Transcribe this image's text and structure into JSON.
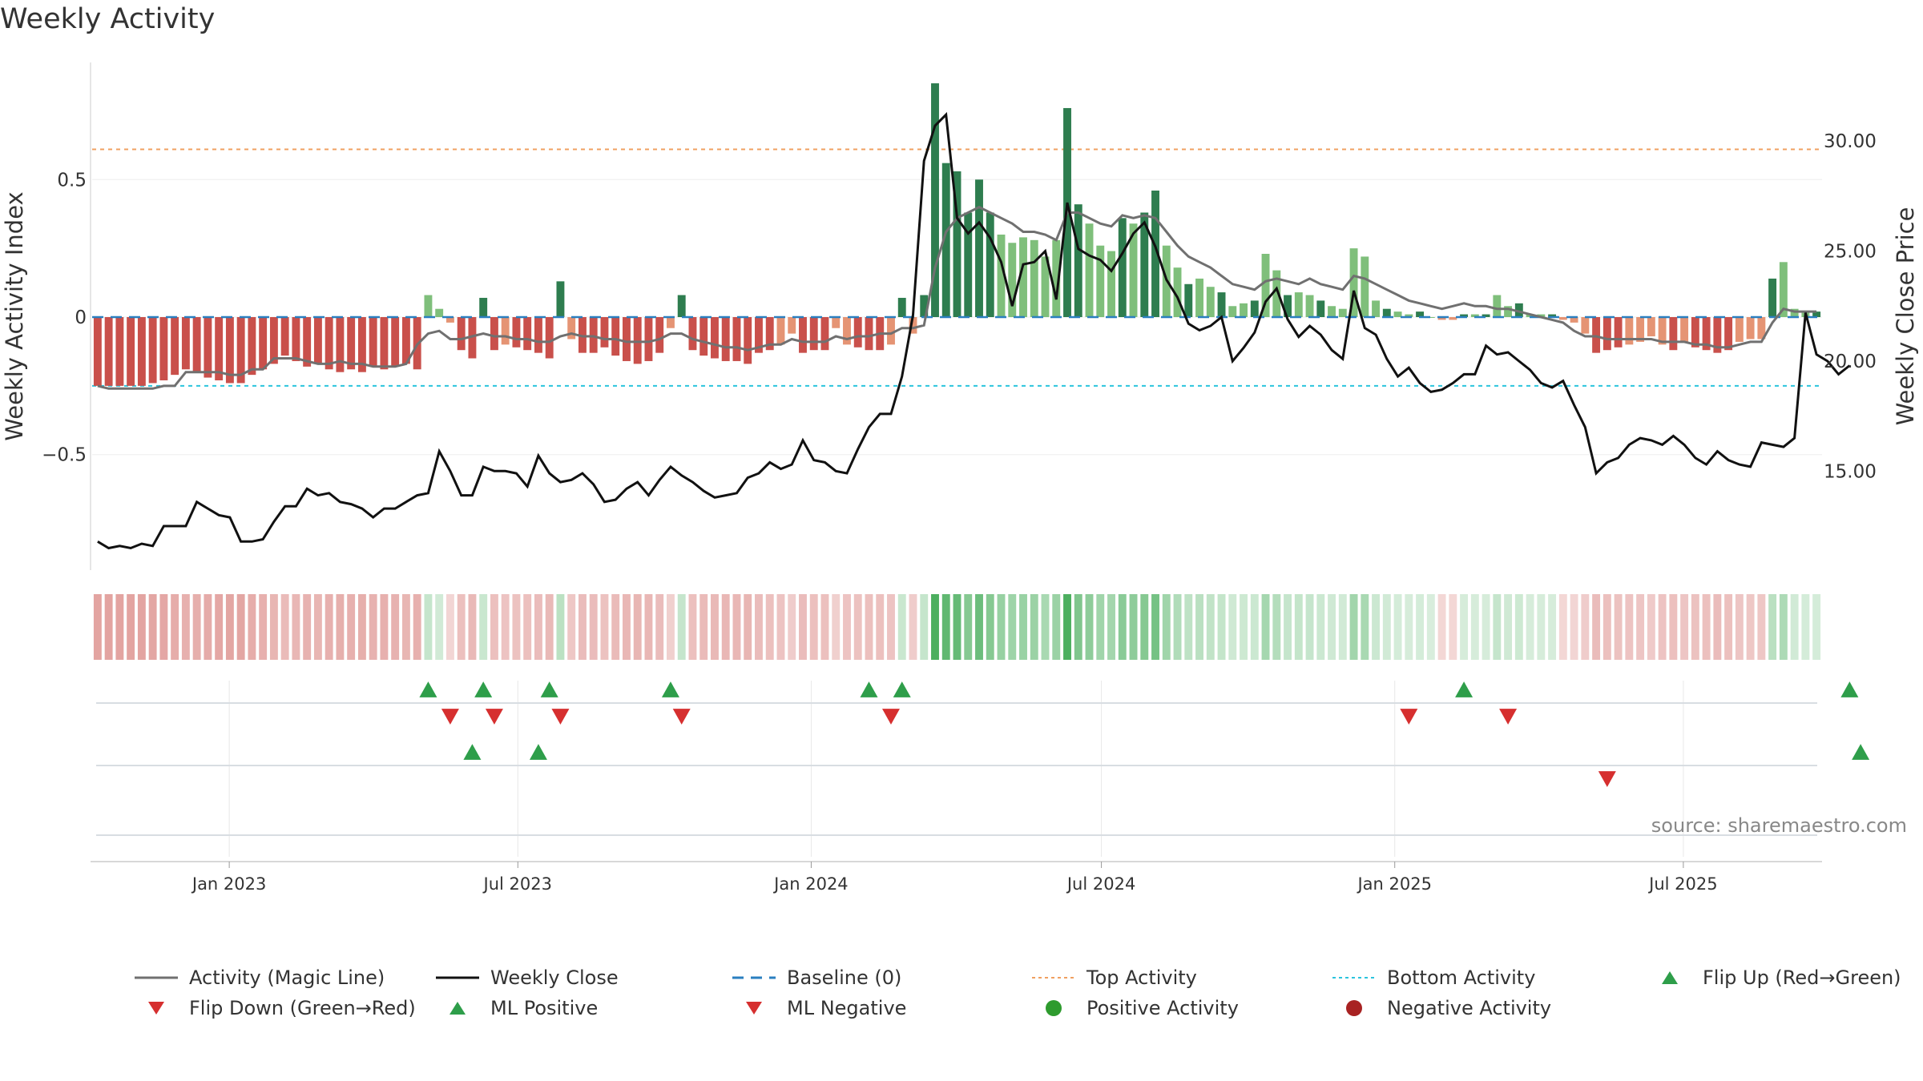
{
  "title": "Weekly Activity",
  "source": "source: sharemaestro.com",
  "colors": {
    "pos_dark": "#2e7d4f",
    "pos_mid": "#4caf5f",
    "pos_light": "#7fbf7b",
    "neg_dark": "#c9504b",
    "neg_light": "#e59474",
    "magic": "#707070",
    "close": "#111111",
    "baseline": "#2a7fc0",
    "top": "#f0a060",
    "bottom": "#2bc4dd",
    "flip_up": "#2e9e4a",
    "flip_down": "#d62f2f",
    "pos_dot": "#2e9b2e",
    "neg_dot": "#a82222"
  },
  "legend": [
    {
      "label": "Activity (Magic Line)",
      "kind": "line",
      "color": "#707070"
    },
    {
      "label": "Weekly Close",
      "kind": "line",
      "color": "#111111"
    },
    {
      "label": "Baseline (0)",
      "kind": "dash",
      "color": "#2a7fc0"
    },
    {
      "label": "Top Activity",
      "kind": "dot-line",
      "color": "#f0a060"
    },
    {
      "label": "Bottom Activity",
      "kind": "dot-line",
      "color": "#2bc4dd"
    },
    {
      "label": "Flip Up (Red→Green)",
      "kind": "tri-up",
      "color": "#2e9e4a"
    },
    {
      "label": "Flip Down (Green→Red)",
      "kind": "tri-down",
      "color": "#d62f2f"
    },
    {
      "label": "ML Positive",
      "kind": "tri-up",
      "color": "#2e9e4a"
    },
    {
      "label": "ML Negative",
      "kind": "tri-down",
      "color": "#d62f2f"
    },
    {
      "label": "Positive Activity",
      "kind": "circle",
      "color": "#2e9b2e"
    },
    {
      "label": "Negative Activity",
      "kind": "circle",
      "color": "#a82222"
    }
  ],
  "chart_data": {
    "type": "bar",
    "title": "Weekly Activity",
    "ylabel": "Weekly Activity Index",
    "y2label": "Weekly Close Price",
    "ylim": [
      -0.92,
      0.92
    ],
    "y2lim": [
      10.5,
      33.5
    ],
    "yticks": [
      0.5,
      0,
      -0.5
    ],
    "ytick_labels": [
      "0.5",
      "0",
      "−0.5"
    ],
    "y2ticks": [
      30,
      25,
      20,
      15
    ],
    "y2tick_labels": [
      "30.00",
      "25.00",
      "20.00",
      "15.00"
    ],
    "top_activity": 0.61,
    "bottom_activity": -0.25,
    "baseline": 0,
    "x_start": "2022-10-07",
    "x_end": "2025-09-26",
    "date_ticks": [
      "2023-01-01",
      "2023-07-01",
      "2024-01-01",
      "2024-07-01",
      "2025-01-01",
      "2025-07-01"
    ],
    "date_tick_labels": [
      "Jan 2023",
      "Jul 2023",
      "Jan 2024",
      "Jul 2024",
      "Jan 2025",
      "Jul 2025"
    ],
    "activity": [
      -0.25,
      -0.25,
      -0.25,
      -0.25,
      -0.25,
      -0.24,
      -0.23,
      -0.21,
      -0.19,
      -0.2,
      -0.22,
      -0.23,
      -0.24,
      -0.24,
      -0.21,
      -0.19,
      -0.17,
      -0.14,
      -0.16,
      -0.18,
      -0.17,
      -0.19,
      -0.2,
      -0.19,
      -0.2,
      -0.18,
      -0.19,
      -0.18,
      -0.17,
      -0.19,
      0.08,
      0.03,
      -0.02,
      -0.12,
      -0.15,
      0.07,
      -0.12,
      -0.1,
      -0.11,
      -0.12,
      -0.13,
      -0.15,
      0.13,
      -0.08,
      -0.13,
      -0.13,
      -0.11,
      -0.14,
      -0.16,
      -0.17,
      -0.16,
      -0.13,
      -0.04,
      0.08,
      -0.12,
      -0.14,
      -0.15,
      -0.16,
      -0.16,
      -0.17,
      -0.13,
      -0.12,
      -0.1,
      -0.06,
      -0.13,
      -0.12,
      -0.12,
      -0.04,
      -0.1,
      -0.11,
      -0.12,
      -0.12,
      -0.1,
      0.07,
      -0.06,
      0.08,
      0.85,
      0.56,
      0.53,
      0.38,
      0.5,
      0.38,
      0.3,
      0.27,
      0.29,
      0.28,
      0.22,
      0.28,
      0.76,
      0.41,
      0.34,
      0.26,
      0.24,
      0.36,
      0.34,
      0.38,
      0.46,
      0.26,
      0.18,
      0.12,
      0.14,
      0.11,
      0.09,
      0.04,
      0.05,
      0.06,
      0.23,
      0.17,
      0.08,
      0.09,
      0.08,
      0.06,
      0.04,
      0.03,
      0.25,
      0.22,
      0.06,
      0.03,
      0.02,
      0.01,
      0.02,
      0.0,
      -0.01,
      -0.01,
      0.01,
      0.01,
      0.01,
      0.08,
      0.04,
      0.05,
      0.01,
      0.01,
      0.01,
      -0.01,
      -0.02,
      -0.06,
      -0.13,
      -0.12,
      -0.11,
      -0.1,
      -0.09,
      -0.07,
      -0.1,
      -0.12,
      -0.09,
      -0.11,
      -0.12,
      -0.13,
      -0.12,
      -0.09,
      -0.08,
      -0.08,
      0.14,
      0.2,
      0.03,
      0.02,
      0.02
    ],
    "magic_line": [
      -0.25,
      -0.26,
      -0.26,
      -0.26,
      -0.26,
      -0.26,
      -0.25,
      -0.25,
      -0.2,
      -0.2,
      -0.2,
      -0.2,
      -0.21,
      -0.21,
      -0.19,
      -0.19,
      -0.15,
      -0.15,
      -0.15,
      -0.16,
      -0.17,
      -0.17,
      -0.16,
      -0.17,
      -0.17,
      -0.18,
      -0.18,
      -0.18,
      -0.17,
      -0.1,
      -0.06,
      -0.05,
      -0.08,
      -0.08,
      -0.07,
      -0.06,
      -0.07,
      -0.07,
      -0.08,
      -0.08,
      -0.09,
      -0.09,
      -0.07,
      -0.06,
      -0.07,
      -0.07,
      -0.08,
      -0.08,
      -0.09,
      -0.09,
      -0.09,
      -0.08,
      -0.06,
      -0.06,
      -0.08,
      -0.09,
      -0.1,
      -0.11,
      -0.11,
      -0.12,
      -0.11,
      -0.1,
      -0.1,
      -0.08,
      -0.09,
      -0.09,
      -0.09,
      -0.07,
      -0.08,
      -0.07,
      -0.07,
      -0.06,
      -0.06,
      -0.04,
      -0.04,
      -0.03,
      0.18,
      0.31,
      0.36,
      0.38,
      0.4,
      0.38,
      0.36,
      0.34,
      0.31,
      0.31,
      0.3,
      0.28,
      0.38,
      0.38,
      0.36,
      0.34,
      0.33,
      0.37,
      0.36,
      0.37,
      0.36,
      0.31,
      0.26,
      0.22,
      0.2,
      0.18,
      0.15,
      0.12,
      0.11,
      0.1,
      0.13,
      0.14,
      0.13,
      0.12,
      0.14,
      0.12,
      0.11,
      0.1,
      0.15,
      0.14,
      0.12,
      0.1,
      0.08,
      0.06,
      0.05,
      0.04,
      0.03,
      0.04,
      0.05,
      0.04,
      0.04,
      0.03,
      0.03,
      0.02,
      0.01,
      0.0,
      -0.01,
      -0.02,
      -0.05,
      -0.07,
      -0.07,
      -0.08,
      -0.08,
      -0.08,
      -0.08,
      -0.08,
      -0.09,
      -0.09,
      -0.09,
      -0.1,
      -0.1,
      -0.11,
      -0.11,
      -0.1,
      -0.09,
      -0.09,
      -0.02,
      0.03,
      0.02,
      0.02,
      0.02
    ],
    "close": [
      11.8,
      11.5,
      11.6,
      11.5,
      11.7,
      11.6,
      12.5,
      12.5,
      12.5,
      13.6,
      13.3,
      13.0,
      12.9,
      11.8,
      11.8,
      11.9,
      12.7,
      13.4,
      13.4,
      14.2,
      13.9,
      14.0,
      13.6,
      13.5,
      13.3,
      12.9,
      13.3,
      13.3,
      13.6,
      13.9,
      14.0,
      15.9,
      15.0,
      13.9,
      13.9,
      15.2,
      15.0,
      15.0,
      14.9,
      14.3,
      15.7,
      14.9,
      14.5,
      14.6,
      14.9,
      14.4,
      13.6,
      13.7,
      14.2,
      14.5,
      13.9,
      14.6,
      15.2,
      14.8,
      14.5,
      14.1,
      13.8,
      13.9,
      14.0,
      14.7,
      14.9,
      15.4,
      15.1,
      15.3,
      16.4,
      15.5,
      15.4,
      15.0,
      14.9,
      16.0,
      17.0,
      17.6,
      17.6,
      19.3,
      22.1,
      29.1,
      30.7,
      31.2,
      26.5,
      25.8,
      26.3,
      25.6,
      24.5,
      22.5,
      24.4,
      24.5,
      25.0,
      22.8,
      27.2,
      25.1,
      24.8,
      24.6,
      24.1,
      24.9,
      25.8,
      26.3,
      25.2,
      23.7,
      22.9,
      21.7,
      21.4,
      21.6,
      22.0,
      20.0,
      20.6,
      21.3,
      22.7,
      23.3,
      21.9,
      21.1,
      21.6,
      21.2,
      20.5,
      20.1,
      23.2,
      21.5,
      21.2,
      20.1,
      19.3,
      19.7,
      19.0,
      18.6,
      18.7,
      19.0,
      19.4,
      19.4,
      20.7,
      20.3,
      20.4,
      20.0,
      19.6,
      19.0,
      18.8,
      19.1,
      18.0,
      17.0,
      14.9,
      15.4,
      15.6,
      16.2,
      16.5,
      16.4,
      16.2,
      16.6,
      16.2,
      15.6,
      15.3,
      15.9,
      15.5,
      15.3,
      15.2,
      16.3,
      16.2,
      16.1,
      16.5,
      22.2,
      20.3,
      20.0,
      19.4,
      19.8
    ],
    "ml_triangles": [
      {
        "week": 34,
        "type": "up"
      },
      {
        "week": 40,
        "type": "up"
      },
      {
        "week": 160,
        "type": "up"
      },
      {
        "week": 137,
        "type": "down"
      }
    ],
    "flip_triangles": [
      {
        "week": 30,
        "type": "up"
      },
      {
        "week": 35,
        "type": "up"
      },
      {
        "week": 41,
        "type": "up"
      },
      {
        "week": 52,
        "type": "up"
      },
      {
        "week": 70,
        "type": "up"
      },
      {
        "week": 73,
        "type": "up"
      },
      {
        "week": 124,
        "type": "up"
      },
      {
        "week": 159,
        "type": "up"
      },
      {
        "week": 32,
        "type": "down"
      },
      {
        "week": 36,
        "type": "down"
      },
      {
        "week": 42,
        "type": "down"
      },
      {
        "week": 53,
        "type": "down"
      },
      {
        "week": 72,
        "type": "down"
      },
      {
        "week": 119,
        "type": "down"
      },
      {
        "week": 128,
        "type": "down"
      }
    ]
  }
}
